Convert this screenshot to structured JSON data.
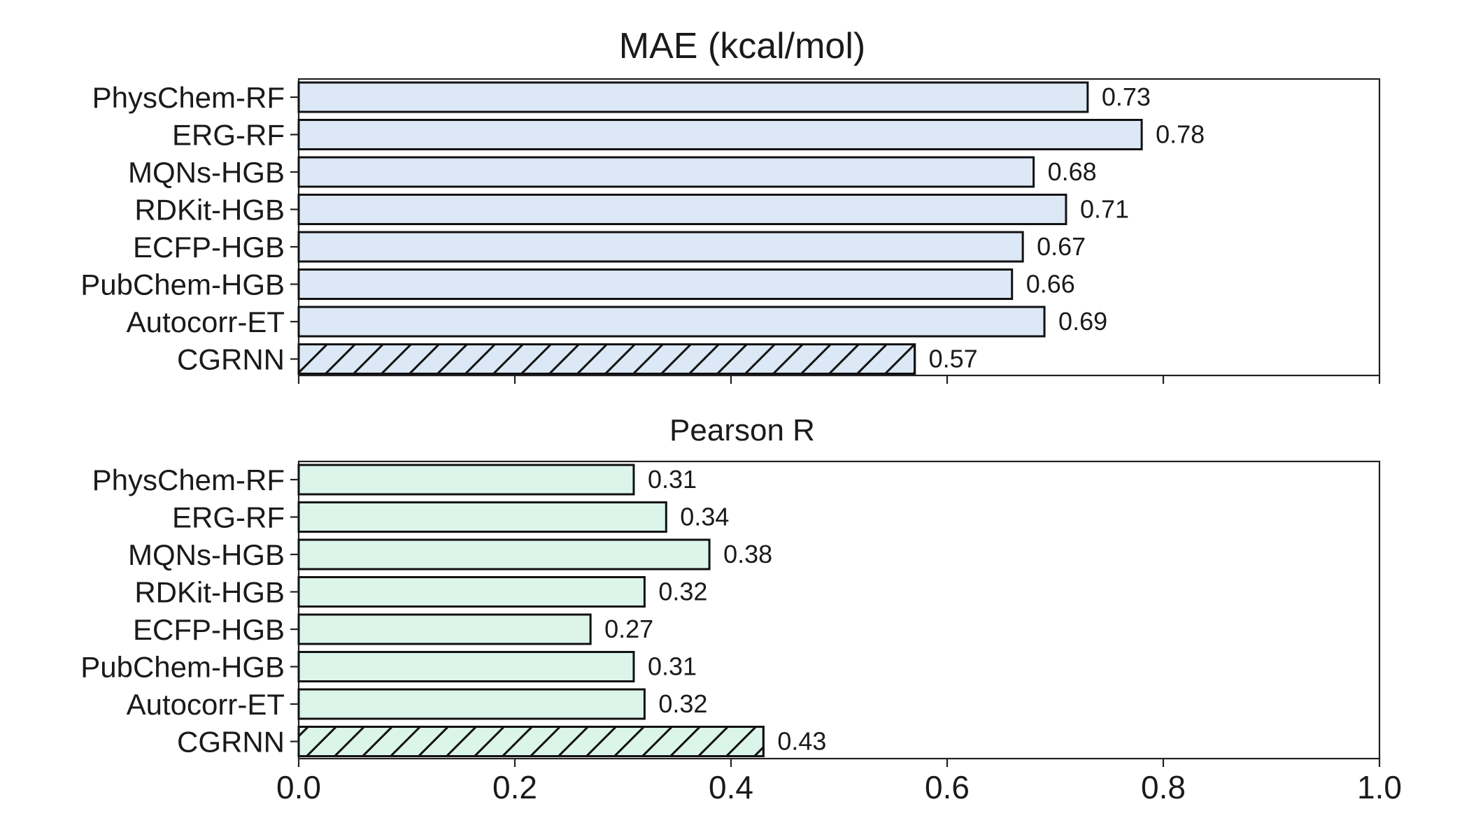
{
  "chart_data": [
    {
      "type": "bar",
      "orientation": "horizontal",
      "title": "MAE (kcal/mol)",
      "categories": [
        "PhysChem-RF",
        "ERG-RF",
        "MQNs-HGB",
        "RDKit-HGB",
        "ECFP-HGB",
        "PubChem-HGB",
        "Autocorr-ET",
        "CGRNN"
      ],
      "values": [
        0.73,
        0.78,
        0.68,
        0.71,
        0.67,
        0.66,
        0.69,
        0.57
      ],
      "data_labels": [
        "0.73",
        "0.78",
        "0.68",
        "0.71",
        "0.67",
        "0.66",
        "0.69",
        "0.57"
      ],
      "hatched_category": "CGRNN",
      "bar_color": "#dce8f5",
      "xlim": [
        0,
        1.0
      ],
      "xlabel": "",
      "ylabel": "",
      "grid": false
    },
    {
      "type": "bar",
      "orientation": "horizontal",
      "title": "Pearson R",
      "categories": [
        "PhysChem-RF",
        "ERG-RF",
        "MQNs-HGB",
        "RDKit-HGB",
        "ECFP-HGB",
        "PubChem-HGB",
        "Autocorr-ET",
        "CGRNN"
      ],
      "values": [
        0.31,
        0.34,
        0.38,
        0.32,
        0.27,
        0.31,
        0.32,
        0.43
      ],
      "data_labels": [
        "0.31",
        "0.34",
        "0.38",
        "0.32",
        "0.27",
        "0.31",
        "0.32",
        "0.43"
      ],
      "hatched_category": "CGRNN",
      "bar_color": "#dcf5ea",
      "xlim": [
        0,
        1.0
      ],
      "xlabel": "",
      "ylabel": "",
      "grid": false
    }
  ],
  "x_tick_labels": [
    "0.0",
    "0.2",
    "0.4",
    "0.6",
    "0.8",
    "1.0"
  ],
  "x_ticks": [
    0,
    0.2,
    0.4,
    0.6,
    0.8,
    1.0
  ]
}
